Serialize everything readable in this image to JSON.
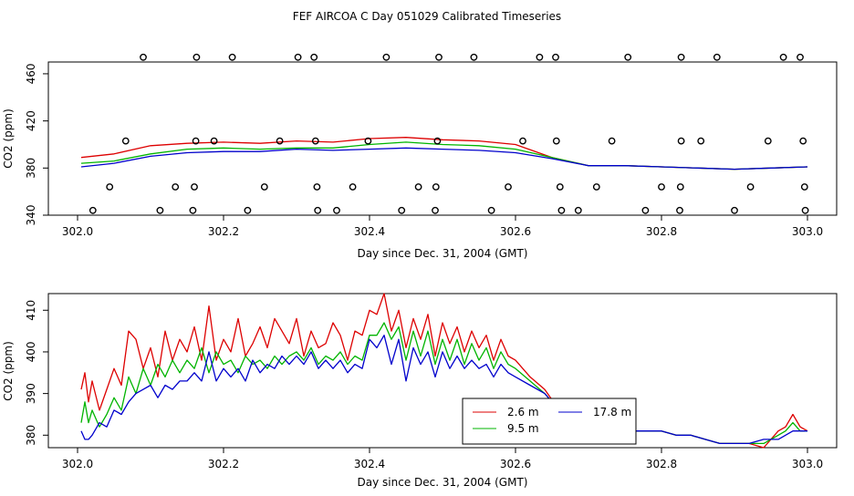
{
  "title": "FEF AIRCOA C  Day 051029  Calibrated Timeseries",
  "colors": {
    "s1": "#dd0000",
    "s2": "#00b400",
    "s3": "#0000cc"
  },
  "chart_data": [
    {
      "type": "scatter",
      "xlabel": "Day since Dec. 31, 2004 (GMT)",
      "ylabel": "CO2 (ppm)",
      "xlim": [
        302.0,
        303.0
      ],
      "ylim": [
        340,
        470
      ],
      "xticks": [
        "302.0",
        "302.2",
        "302.4",
        "302.6",
        "302.8",
        "303.0"
      ],
      "yticks": [
        "340",
        "380",
        "420",
        "460"
      ],
      "marker_levels": [
        474,
        403,
        364,
        344
      ],
      "marker_x": {
        "474": [
          302.09,
          302.163,
          302.212,
          302.302,
          302.324,
          302.423,
          302.495,
          302.543,
          302.633,
          302.655,
          302.754,
          302.827,
          302.876,
          302.967,
          302.99
        ],
        "403": [
          302.066,
          302.162,
          302.187,
          302.277,
          302.326,
          302.398,
          302.493,
          302.61,
          302.656,
          302.732,
          302.827,
          302.854,
          302.946,
          302.994
        ],
        "364": [
          302.044,
          302.134,
          302.16,
          302.256,
          302.328,
          302.377,
          302.467,
          302.491,
          302.59,
          302.661,
          302.711,
          302.8,
          302.826,
          302.922,
          302.996
        ],
        "344": [
          302.021,
          302.113,
          302.158,
          302.233,
          302.329,
          302.355,
          302.444,
          302.49,
          302.567,
          302.663,
          302.686,
          302.778,
          302.825,
          302.9,
          302.997
        ]
      },
      "series": [
        {
          "name": "2.6 m",
          "x": [
            302.005,
            302.05,
            302.1,
            302.15,
            302.2,
            302.25,
            302.3,
            302.35,
            302.4,
            302.45,
            302.5,
            302.55,
            302.6,
            302.65,
            302.7,
            302.75,
            302.8,
            302.85,
            302.9,
            302.95,
            303.0
          ],
          "y": [
            389,
            392,
            399,
            401,
            402,
            401,
            403,
            402,
            405,
            406,
            404,
            403,
            400,
            389,
            382,
            382,
            381,
            380,
            379,
            380,
            381
          ]
        },
        {
          "name": "9.5 m",
          "x": [
            302.005,
            302.05,
            302.1,
            302.15,
            302.2,
            302.25,
            302.3,
            302.35,
            302.4,
            302.45,
            302.5,
            302.55,
            302.6,
            302.65,
            302.7,
            302.75,
            302.8,
            302.85,
            302.9,
            302.95,
            303.0
          ],
          "y": [
            384,
            386,
            392,
            396,
            397,
            396,
            397,
            397,
            400,
            402,
            400,
            399,
            396,
            389,
            382,
            382,
            381,
            380,
            379,
            380,
            381
          ]
        },
        {
          "name": "17.8 m",
          "x": [
            302.005,
            302.05,
            302.1,
            302.15,
            302.2,
            302.25,
            302.3,
            302.35,
            302.4,
            302.45,
            302.5,
            302.55,
            302.6,
            302.65,
            302.7,
            302.75,
            302.8,
            302.85,
            302.9,
            302.95,
            303.0
          ],
          "y": [
            381,
            384,
            390,
            393,
            394,
            394,
            396,
            395,
            396,
            397,
            396,
            395,
            393,
            388,
            382,
            382,
            381,
            380,
            379,
            380,
            381
          ]
        }
      ]
    },
    {
      "type": "line",
      "xlabel": "Day since Dec. 31, 2004 (GMT)",
      "ylabel": "CO2 (ppm)",
      "xlim": [
        302.0,
        303.0
      ],
      "ylim": [
        377,
        414
      ],
      "xticks": [
        "302.0",
        "302.2",
        "302.4",
        "302.6",
        "302.8",
        "303.0"
      ],
      "yticks": [
        "380",
        "390",
        "400",
        "410"
      ],
      "legend": {
        "position": "bottom-center",
        "entries": [
          "2.6 m",
          "9.5 m",
          "17.8 m"
        ]
      },
      "series": [
        {
          "name": "2.6 m",
          "x": [
            302.005,
            302.01,
            302.015,
            302.02,
            302.03,
            302.04,
            302.05,
            302.06,
            302.07,
            302.08,
            302.09,
            302.1,
            302.11,
            302.12,
            302.13,
            302.14,
            302.15,
            302.16,
            302.17,
            302.18,
            302.19,
            302.2,
            302.21,
            302.22,
            302.23,
            302.24,
            302.25,
            302.26,
            302.27,
            302.28,
            302.29,
            302.3,
            302.31,
            302.32,
            302.33,
            302.34,
            302.35,
            302.36,
            302.37,
            302.38,
            302.39,
            302.4,
            302.41,
            302.42,
            302.43,
            302.44,
            302.45,
            302.46,
            302.47,
            302.48,
            302.49,
            302.5,
            302.51,
            302.52,
            302.53,
            302.54,
            302.55,
            302.56,
            302.57,
            302.58,
            302.59,
            302.6,
            302.62,
            302.64,
            302.66,
            302.68,
            302.7,
            302.72,
            302.74,
            302.76,
            302.78,
            302.8,
            302.82,
            302.84,
            302.86,
            302.88,
            302.9,
            302.92,
            302.94,
            302.96,
            302.97,
            302.98,
            302.99,
            303.0
          ],
          "y": [
            391,
            395,
            388,
            393,
            386,
            391,
            396,
            392,
            405,
            403,
            396,
            401,
            394,
            405,
            398,
            403,
            400,
            406,
            398,
            411,
            398,
            403,
            400,
            408,
            399,
            402,
            406,
            401,
            408,
            405,
            402,
            408,
            399,
            405,
            401,
            402,
            407,
            404,
            398,
            405,
            404,
            410,
            409,
            414,
            405,
            410,
            401,
            408,
            403,
            409,
            399,
            407,
            402,
            406,
            400,
            405,
            401,
            404,
            398,
            403,
            399,
            398,
            394,
            391,
            386,
            383,
            382,
            382,
            381,
            381,
            381,
            381,
            380,
            380,
            379,
            378,
            378,
            378,
            377,
            381,
            382,
            385,
            382,
            381
          ]
        },
        {
          "name": "9.5 m",
          "x": [
            302.005,
            302.01,
            302.015,
            302.02,
            302.03,
            302.04,
            302.05,
            302.06,
            302.07,
            302.08,
            302.09,
            302.1,
            302.11,
            302.12,
            302.13,
            302.14,
            302.15,
            302.16,
            302.17,
            302.18,
            302.19,
            302.2,
            302.21,
            302.22,
            302.23,
            302.24,
            302.25,
            302.26,
            302.27,
            302.28,
            302.29,
            302.3,
            302.31,
            302.32,
            302.33,
            302.34,
            302.35,
            302.36,
            302.37,
            302.38,
            302.39,
            302.4,
            302.41,
            302.42,
            302.43,
            302.44,
            302.45,
            302.46,
            302.47,
            302.48,
            302.49,
            302.5,
            302.51,
            302.52,
            302.53,
            302.54,
            302.55,
            302.56,
            302.57,
            302.58,
            302.59,
            302.6,
            302.62,
            302.64,
            302.66,
            302.68,
            302.7,
            302.72,
            302.74,
            302.76,
            302.78,
            302.8,
            302.82,
            302.84,
            302.86,
            302.88,
            302.9,
            302.92,
            302.94,
            302.96,
            302.97,
            302.98,
            302.99,
            303.0
          ],
          "y": [
            383,
            388,
            383,
            386,
            382,
            385,
            389,
            386,
            394,
            390,
            396,
            392,
            397,
            394,
            398,
            395,
            398,
            396,
            401,
            395,
            400,
            397,
            398,
            395,
            399,
            397,
            398,
            396,
            399,
            397,
            399,
            400,
            398,
            401,
            397,
            399,
            398,
            400,
            397,
            399,
            398,
            404,
            404,
            407,
            403,
            406,
            398,
            405,
            399,
            405,
            397,
            403,
            398,
            403,
            397,
            402,
            398,
            401,
            396,
            400,
            397,
            396,
            393,
            390,
            386,
            383,
            382,
            382,
            381,
            381,
            381,
            381,
            380,
            380,
            379,
            378,
            378,
            378,
            378,
            380,
            381,
            383,
            381,
            381
          ]
        },
        {
          "name": "17.8 m",
          "x": [
            302.005,
            302.01,
            302.015,
            302.02,
            302.03,
            302.04,
            302.05,
            302.06,
            302.07,
            302.08,
            302.09,
            302.1,
            302.11,
            302.12,
            302.13,
            302.14,
            302.15,
            302.16,
            302.17,
            302.18,
            302.19,
            302.2,
            302.21,
            302.22,
            302.23,
            302.24,
            302.25,
            302.26,
            302.27,
            302.28,
            302.29,
            302.3,
            302.31,
            302.32,
            302.33,
            302.34,
            302.35,
            302.36,
            302.37,
            302.38,
            302.39,
            302.4,
            302.41,
            302.42,
            302.43,
            302.44,
            302.45,
            302.46,
            302.47,
            302.48,
            302.49,
            302.5,
            302.51,
            302.52,
            302.53,
            302.54,
            302.55,
            302.56,
            302.57,
            302.58,
            302.59,
            302.6,
            302.62,
            302.64,
            302.66,
            302.68,
            302.7,
            302.72,
            302.74,
            302.76,
            302.78,
            302.8,
            302.82,
            302.84,
            302.86,
            302.88,
            302.9,
            302.92,
            302.94,
            302.96,
            302.97,
            302.98,
            302.99,
            303.0
          ],
          "y": [
            381,
            379,
            379,
            380,
            383,
            382,
            386,
            385,
            388,
            390,
            391,
            392,
            389,
            392,
            391,
            393,
            393,
            395,
            393,
            400,
            393,
            396,
            394,
            396,
            393,
            398,
            395,
            397,
            396,
            399,
            397,
            399,
            397,
            400,
            396,
            398,
            396,
            398,
            395,
            397,
            396,
            403,
            401,
            404,
            397,
            403,
            393,
            401,
            397,
            400,
            394,
            400,
            396,
            399,
            396,
            398,
            396,
            397,
            394,
            397,
            395,
            394,
            392,
            390,
            386,
            383,
            382,
            382,
            381,
            381,
            381,
            381,
            380,
            380,
            379,
            378,
            378,
            378,
            379,
            379,
            380,
            381,
            381,
            381
          ]
        }
      ]
    }
  ]
}
